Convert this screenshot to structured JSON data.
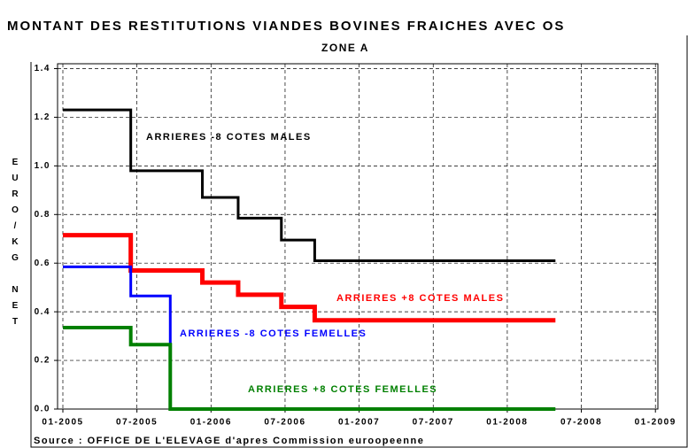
{
  "chart_data": {
    "type": "step",
    "title": "MONTANT DES RESTITUTIONS VIANDES BOVINES FRAICHES AVEC OS",
    "subtitle": "ZONE A",
    "ylabel": "EURO/KG NET",
    "source": "Source : OFFICE DE L'ELEVAGE d'apres Commission euroopeenne",
    "xlim": [
      -0.43,
      48.2
    ],
    "ylim": [
      0,
      1.42
    ],
    "xticks": [
      {
        "value": 0,
        "label": "01-2005"
      },
      {
        "value": 6,
        "label": "07-2005"
      },
      {
        "value": 12,
        "label": "01-2006"
      },
      {
        "value": 18,
        "label": "07-2006"
      },
      {
        "value": 24,
        "label": "01-2007"
      },
      {
        "value": 30,
        "label": "07-2007"
      },
      {
        "value": 36,
        "label": "01-2008"
      },
      {
        "value": 42,
        "label": "07-2008"
      },
      {
        "value": 48,
        "label": "01-2009"
      }
    ],
    "yticks": [
      {
        "value": 0,
        "label": "0.0"
      },
      0.2,
      0.4,
      0.6,
      0.8,
      {
        "value": 1,
        "label": "1.0"
      },
      1.2,
      1.4
    ],
    "grid": true,
    "series": [
      {
        "name": "ARRIERES -8 COTES MALES",
        "color": "#000000",
        "x": [
          0,
          5.5,
          11.3,
          14.2,
          17.7,
          20.4,
          39.9
        ],
        "values": [
          1.23,
          0.98,
          0.87,
          0.785,
          0.695,
          0.61,
          0.61
        ]
      },
      {
        "name": "ARRIERES +8 COTES MALES",
        "color": "#ff0000",
        "x": [
          0,
          5.5,
          11.3,
          14.2,
          17.7,
          20.4,
          39.9
        ],
        "values": [
          0.715,
          0.57,
          0.52,
          0.47,
          0.42,
          0.365,
          0.365
        ]
      },
      {
        "name": "ARRIERES -8 COTES FEMELLES",
        "color": "#0000ff",
        "x": [
          0,
          5.5,
          8.7
        ],
        "values": [
          0.585,
          0.465,
          0
        ]
      },
      {
        "name": "ARRIERES +8 COTES FEMELLES",
        "color": "#008000",
        "x": [
          0,
          5.5,
          8.7,
          39.9
        ],
        "values": [
          0.335,
          0.265,
          0,
          0
        ]
      }
    ]
  }
}
